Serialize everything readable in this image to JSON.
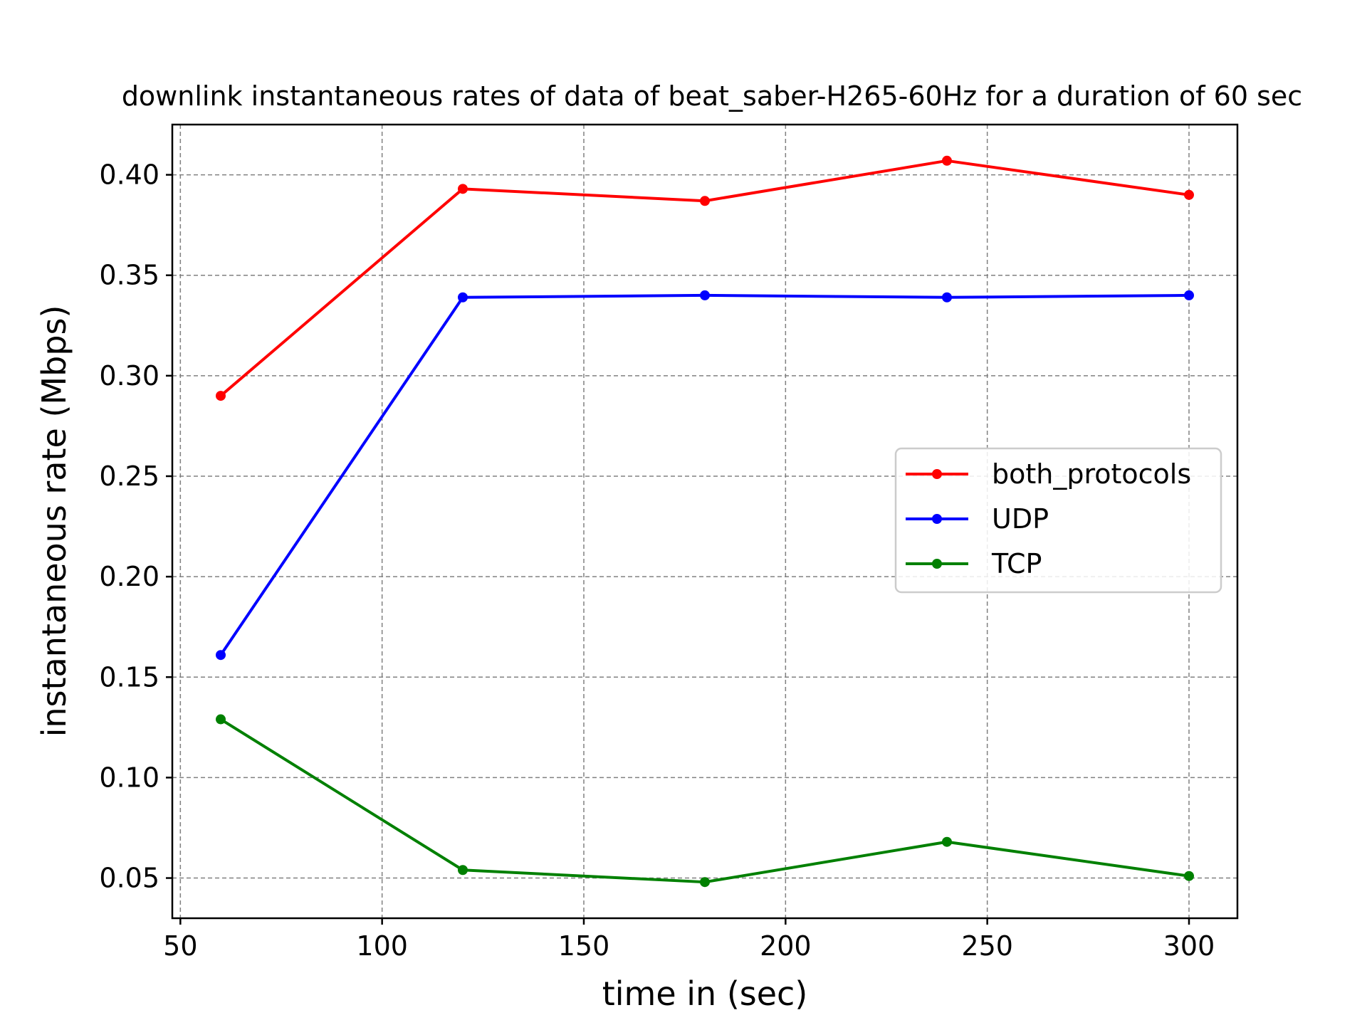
{
  "chart_data": {
    "type": "line",
    "title": "downlink instantaneous rates of data of beat_saber-H265-60Hz for a duration of 60 sec",
    "xlabel": "time in (sec)",
    "ylabel": "instantaneous rate (Mbps)",
    "x": [
      60,
      120,
      180,
      240,
      300
    ],
    "xlim": [
      48,
      312
    ],
    "ylim": [
      0.03,
      0.425
    ],
    "xticks": [
      50,
      100,
      150,
      200,
      250,
      300
    ],
    "xtick_labels": [
      "50",
      "100",
      "150",
      "200",
      "250",
      "300"
    ],
    "yticks": [
      0.05,
      0.1,
      0.15,
      0.2,
      0.25,
      0.3,
      0.35,
      0.4
    ],
    "ytick_labels": [
      "0.05",
      "0.10",
      "0.15",
      "0.20",
      "0.25",
      "0.30",
      "0.35",
      "0.40"
    ],
    "grid": true,
    "legend_position": "center-right",
    "series": [
      {
        "name": "both_protocols",
        "color": "#ff0000",
        "values": [
          0.29,
          0.393,
          0.387,
          0.407,
          0.39
        ]
      },
      {
        "name": "UDP",
        "color": "#0000ff",
        "values": [
          0.161,
          0.339,
          0.34,
          0.339,
          0.34
        ]
      },
      {
        "name": "TCP",
        "color": "#008000",
        "values": [
          0.129,
          0.054,
          0.048,
          0.068,
          0.051
        ]
      }
    ]
  }
}
